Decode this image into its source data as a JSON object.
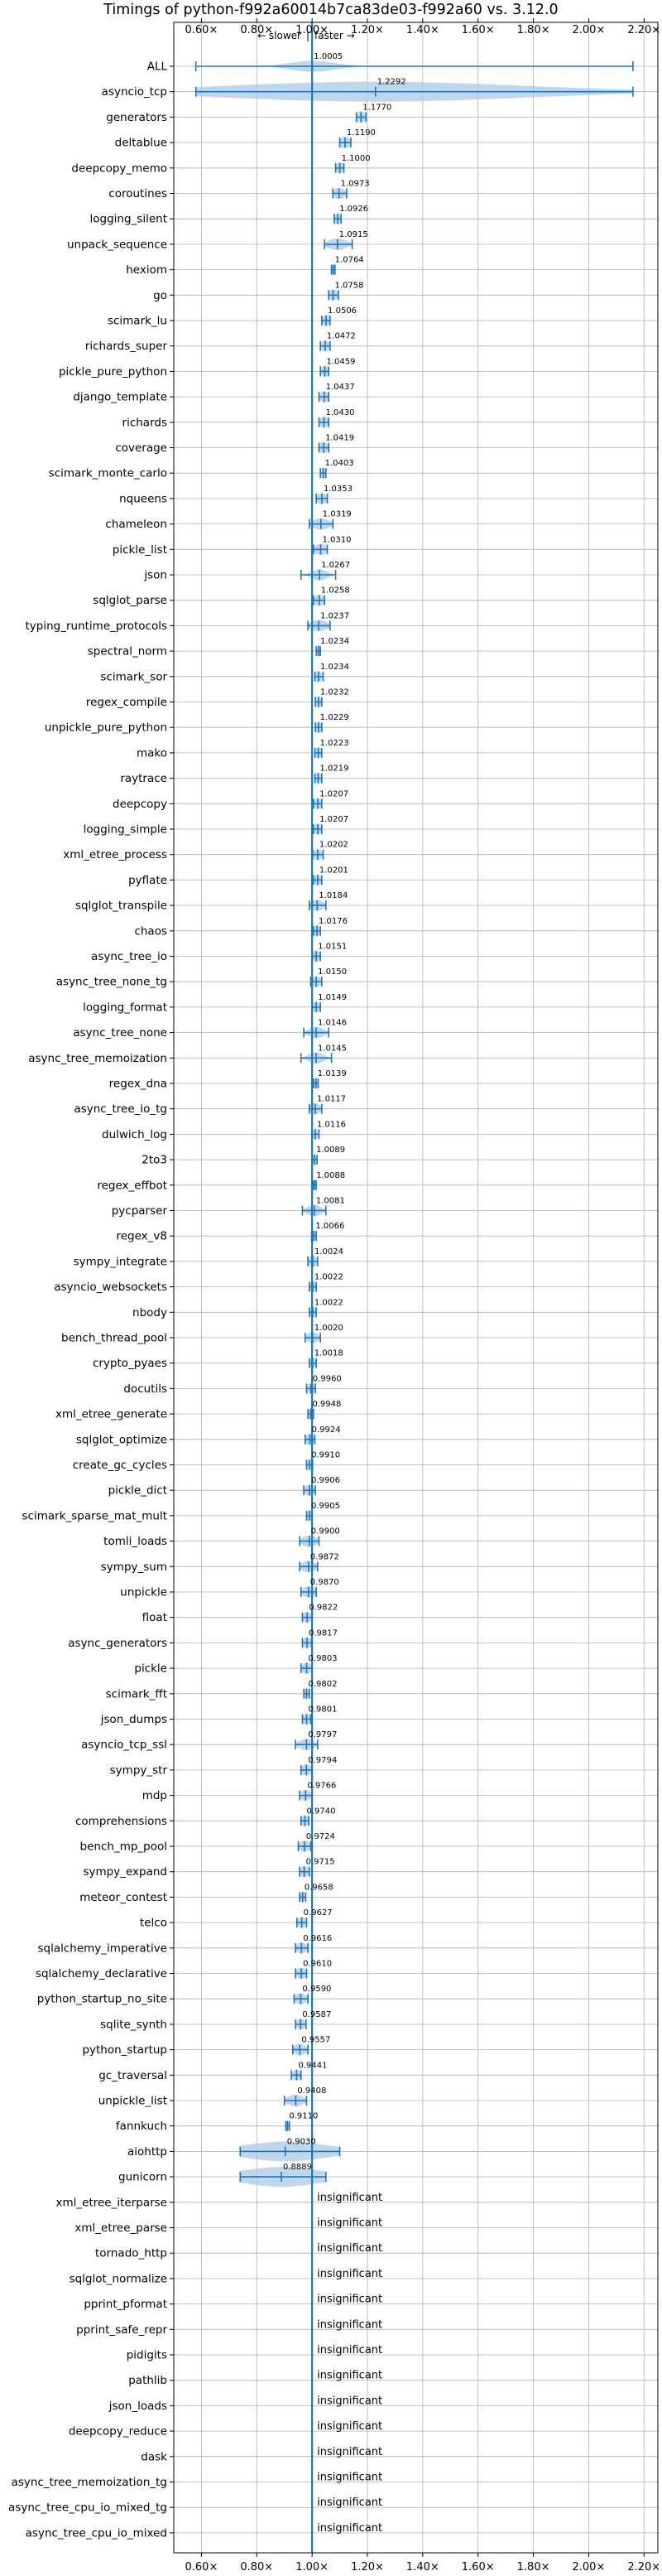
{
  "chart_data": {
    "type": "violin",
    "title": "Timings of python-f992a60014b7ca83de03-f992a60 vs. 3.12.0",
    "annotation_left": "← slower",
    "annotation_sep": "|",
    "annotation_right": "faster →",
    "xlim": [
      0.5,
      2.25
    ],
    "xticks": [
      0.6,
      0.8,
      1.0,
      1.2,
      1.4,
      1.6,
      1.8,
      2.0,
      2.2
    ],
    "xtick_labels": [
      "0.60×",
      "0.80×",
      "1.00×",
      "1.20×",
      "1.40×",
      "1.60×",
      "1.80×",
      "2.00×",
      "2.20×"
    ],
    "grid": true,
    "reference_line": 1.0,
    "colors": {
      "violin": "#a9c8e6",
      "whisker": "#1f77b4",
      "reference": "#1f77b4",
      "median": "#d62728",
      "grid": "#b0b0b0"
    },
    "insignificant_label": "insignificant",
    "benchmarks": [
      {
        "name": "ALL",
        "ratio": 1.0005,
        "label": "1.0005",
        "lo": 0.58,
        "hi": 2.16,
        "vwidth": 0.09,
        "significant": true
      },
      {
        "name": "asyncio_tcp",
        "ratio": 1.2292,
        "label": "1.2292",
        "lo": 0.58,
        "hi": 2.16,
        "vwidth": 0.62,
        "significant": true
      },
      {
        "name": "generators",
        "ratio": 1.177,
        "label": "1.1770",
        "lo": 1.16,
        "hi": 1.195,
        "vwidth": 0.018,
        "significant": true
      },
      {
        "name": "deltablue",
        "ratio": 1.119,
        "label": "1.1190",
        "lo": 1.1,
        "hi": 1.14,
        "vwidth": 0.02,
        "significant": true
      },
      {
        "name": "deepcopy_memo",
        "ratio": 1.1,
        "label": "1.1000",
        "lo": 1.085,
        "hi": 1.115,
        "vwidth": 0.015,
        "significant": true
      },
      {
        "name": "coroutines",
        "ratio": 1.0973,
        "label": "1.0973",
        "lo": 1.075,
        "hi": 1.125,
        "vwidth": 0.025,
        "significant": true
      },
      {
        "name": "logging_silent",
        "ratio": 1.0926,
        "label": "1.0926",
        "lo": 1.08,
        "hi": 1.105,
        "vwidth": 0.013,
        "significant": true
      },
      {
        "name": "unpack_sequence",
        "ratio": 1.0915,
        "label": "1.0915",
        "lo": 1.045,
        "hi": 1.145,
        "vwidth": 0.04,
        "significant": true
      },
      {
        "name": "hexiom",
        "ratio": 1.0764,
        "label": "1.0764",
        "lo": 1.07,
        "hi": 1.083,
        "vwidth": 0.008,
        "significant": true
      },
      {
        "name": "go",
        "ratio": 1.0758,
        "label": "1.0758",
        "lo": 1.06,
        "hi": 1.095,
        "vwidth": 0.018,
        "significant": true
      },
      {
        "name": "scimark_lu",
        "ratio": 1.0506,
        "label": "1.0506",
        "lo": 1.035,
        "hi": 1.065,
        "vwidth": 0.015,
        "significant": true
      },
      {
        "name": "richards_super",
        "ratio": 1.0472,
        "label": "1.0472",
        "lo": 1.03,
        "hi": 1.065,
        "vwidth": 0.017,
        "significant": true
      },
      {
        "name": "pickle_pure_python",
        "ratio": 1.0459,
        "label": "1.0459",
        "lo": 1.03,
        "hi": 1.06,
        "vwidth": 0.015,
        "significant": true
      },
      {
        "name": "django_template",
        "ratio": 1.0437,
        "label": "1.0437",
        "lo": 1.025,
        "hi": 1.06,
        "vwidth": 0.017,
        "significant": true
      },
      {
        "name": "richards",
        "ratio": 1.043,
        "label": "1.0430",
        "lo": 1.025,
        "hi": 1.06,
        "vwidth": 0.017,
        "significant": true
      },
      {
        "name": "coverage",
        "ratio": 1.0419,
        "label": "1.0419",
        "lo": 1.025,
        "hi": 1.06,
        "vwidth": 0.017,
        "significant": true
      },
      {
        "name": "scimark_monte_carlo",
        "ratio": 1.0403,
        "label": "1.0403",
        "lo": 1.03,
        "hi": 1.05,
        "vwidth": 0.01,
        "significant": true
      },
      {
        "name": "nqueens",
        "ratio": 1.0353,
        "label": "1.0353",
        "lo": 1.015,
        "hi": 1.055,
        "vwidth": 0.02,
        "significant": true
      },
      {
        "name": "chameleon",
        "ratio": 1.0319,
        "label": "1.0319",
        "lo": 0.99,
        "hi": 1.075,
        "vwidth": 0.035,
        "significant": true
      },
      {
        "name": "pickle_list",
        "ratio": 1.031,
        "label": "1.0310",
        "lo": 1.005,
        "hi": 1.055,
        "vwidth": 0.025,
        "significant": true
      },
      {
        "name": "json",
        "ratio": 1.0267,
        "label": "1.0267",
        "lo": 0.96,
        "hi": 1.085,
        "vwidth": 0.03,
        "significant": true
      },
      {
        "name": "sqlglot_parse",
        "ratio": 1.0258,
        "label": "1.0258",
        "lo": 1.005,
        "hi": 1.045,
        "vwidth": 0.022,
        "significant": true
      },
      {
        "name": "typing_runtime_protocols",
        "ratio": 1.0237,
        "label": "1.0237",
        "lo": 0.985,
        "hi": 1.065,
        "vwidth": 0.035,
        "significant": true
      },
      {
        "name": "spectral_norm",
        "ratio": 1.0234,
        "label": "1.0234",
        "lo": 1.015,
        "hi": 1.03,
        "vwidth": 0.008,
        "significant": true
      },
      {
        "name": "scimark_sor",
        "ratio": 1.0234,
        "label": "1.0234",
        "lo": 1.01,
        "hi": 1.04,
        "vwidth": 0.014,
        "significant": true
      },
      {
        "name": "regex_compile",
        "ratio": 1.0232,
        "label": "1.0232",
        "lo": 1.012,
        "hi": 1.035,
        "vwidth": 0.012,
        "significant": true
      },
      {
        "name": "unpickle_pure_python",
        "ratio": 1.0229,
        "label": "1.0229",
        "lo": 1.012,
        "hi": 1.035,
        "vwidth": 0.012,
        "significant": true
      },
      {
        "name": "mako",
        "ratio": 1.0223,
        "label": "1.0223",
        "lo": 1.01,
        "hi": 1.035,
        "vwidth": 0.013,
        "significant": true
      },
      {
        "name": "raytrace",
        "ratio": 1.0219,
        "label": "1.0219",
        "lo": 1.01,
        "hi": 1.035,
        "vwidth": 0.013,
        "significant": true
      },
      {
        "name": "deepcopy",
        "ratio": 1.0207,
        "label": "1.0207",
        "lo": 1.005,
        "hi": 1.035,
        "vwidth": 0.015,
        "significant": true
      },
      {
        "name": "logging_simple",
        "ratio": 1.0207,
        "label": "1.0207",
        "lo": 1.005,
        "hi": 1.035,
        "vwidth": 0.015,
        "significant": true
      },
      {
        "name": "xml_etree_process",
        "ratio": 1.0202,
        "label": "1.0202",
        "lo": 1.002,
        "hi": 1.04,
        "vwidth": 0.018,
        "significant": true
      },
      {
        "name": "pyflate",
        "ratio": 1.0201,
        "label": "1.0201",
        "lo": 1.005,
        "hi": 1.035,
        "vwidth": 0.015,
        "significant": true
      },
      {
        "name": "sqlglot_transpile",
        "ratio": 1.0184,
        "label": "1.0184",
        "lo": 0.99,
        "hi": 1.05,
        "vwidth": 0.025,
        "significant": true
      },
      {
        "name": "chaos",
        "ratio": 1.0176,
        "label": "1.0176",
        "lo": 1.005,
        "hi": 1.03,
        "vwidth": 0.013,
        "significant": true
      },
      {
        "name": "async_tree_io",
        "ratio": 1.0151,
        "label": "1.0151",
        "lo": 1.0,
        "hi": 1.03,
        "vwidth": 0.015,
        "significant": true
      },
      {
        "name": "async_tree_none_tg",
        "ratio": 1.015,
        "label": "1.0150",
        "lo": 0.995,
        "hi": 1.035,
        "vwidth": 0.018,
        "significant": true
      },
      {
        "name": "logging_format",
        "ratio": 1.0149,
        "label": "1.0149",
        "lo": 1.0,
        "hi": 1.03,
        "vwidth": 0.015,
        "significant": true
      },
      {
        "name": "async_tree_none",
        "ratio": 1.0146,
        "label": "1.0146",
        "lo": 0.97,
        "hi": 1.06,
        "vwidth": 0.03,
        "significant": true
      },
      {
        "name": "async_tree_memoization",
        "ratio": 1.0145,
        "label": "1.0145",
        "lo": 0.96,
        "hi": 1.07,
        "vwidth": 0.03,
        "significant": true
      },
      {
        "name": "regex_dna",
        "ratio": 1.0139,
        "label": "1.0139",
        "lo": 1.005,
        "hi": 1.022,
        "vwidth": 0.008,
        "significant": true
      },
      {
        "name": "async_tree_io_tg",
        "ratio": 1.0117,
        "label": "1.0117",
        "lo": 0.99,
        "hi": 1.035,
        "vwidth": 0.02,
        "significant": true
      },
      {
        "name": "dulwich_log",
        "ratio": 1.0116,
        "label": "1.0116",
        "lo": 1.0,
        "hi": 1.025,
        "vwidth": 0.012,
        "significant": true
      },
      {
        "name": "2to3",
        "ratio": 1.0089,
        "label": "1.0089",
        "lo": 1.0,
        "hi": 1.018,
        "vwidth": 0.009,
        "significant": true
      },
      {
        "name": "regex_effbot",
        "ratio": 1.0088,
        "label": "1.0088",
        "lo": 1.003,
        "hi": 1.015,
        "vwidth": 0.006,
        "significant": true
      },
      {
        "name": "pycparser",
        "ratio": 1.0081,
        "label": "1.0081",
        "lo": 0.965,
        "hi": 1.05,
        "vwidth": 0.03,
        "significant": true
      },
      {
        "name": "regex_v8",
        "ratio": 1.0066,
        "label": "1.0066",
        "lo": 0.998,
        "hi": 1.015,
        "vwidth": 0.008,
        "significant": true
      },
      {
        "name": "sympy_integrate",
        "ratio": 1.0024,
        "label": "1.0024",
        "lo": 0.985,
        "hi": 1.02,
        "vwidth": 0.017,
        "significant": true
      },
      {
        "name": "asyncio_websockets",
        "ratio": 1.0022,
        "label": "1.0022",
        "lo": 0.99,
        "hi": 1.015,
        "vwidth": 0.012,
        "significant": true
      },
      {
        "name": "nbody",
        "ratio": 1.0022,
        "label": "1.0022",
        "lo": 0.99,
        "hi": 1.015,
        "vwidth": 0.012,
        "significant": true
      },
      {
        "name": "bench_thread_pool",
        "ratio": 1.002,
        "label": "1.0020",
        "lo": 0.975,
        "hi": 1.03,
        "vwidth": 0.022,
        "significant": true
      },
      {
        "name": "crypto_pyaes",
        "ratio": 1.0018,
        "label": "1.0018",
        "lo": 0.99,
        "hi": 1.015,
        "vwidth": 0.012,
        "significant": true
      },
      {
        "name": "docutils",
        "ratio": 0.996,
        "label": "0.9960",
        "lo": 0.98,
        "hi": 1.012,
        "vwidth": 0.015,
        "significant": true
      },
      {
        "name": "xml_etree_generate",
        "ratio": 0.9948,
        "label": "0.9948",
        "lo": 0.985,
        "hi": 1.005,
        "vwidth": 0.01,
        "significant": true
      },
      {
        "name": "sqlglot_optimize",
        "ratio": 0.9924,
        "label": "0.9924",
        "lo": 0.975,
        "hi": 1.01,
        "vwidth": 0.017,
        "significant": true
      },
      {
        "name": "create_gc_cycles",
        "ratio": 0.991,
        "label": "0.9910",
        "lo": 0.98,
        "hi": 1.002,
        "vwidth": 0.01,
        "significant": true
      },
      {
        "name": "pickle_dict",
        "ratio": 0.9906,
        "label": "0.9906",
        "lo": 0.97,
        "hi": 1.012,
        "vwidth": 0.02,
        "significant": true
      },
      {
        "name": "scimark_sparse_mat_mult",
        "ratio": 0.9905,
        "label": "0.9905",
        "lo": 0.98,
        "hi": 1.0,
        "vwidth": 0.01,
        "significant": true
      },
      {
        "name": "tomli_loads",
        "ratio": 0.99,
        "label": "0.9900",
        "lo": 0.955,
        "hi": 1.025,
        "vwidth": 0.03,
        "significant": true
      },
      {
        "name": "sympy_sum",
        "ratio": 0.9872,
        "label": "0.9872",
        "lo": 0.955,
        "hi": 1.02,
        "vwidth": 0.03,
        "significant": true
      },
      {
        "name": "unpickle",
        "ratio": 0.987,
        "label": "0.9870",
        "lo": 0.96,
        "hi": 1.015,
        "vwidth": 0.025,
        "significant": true
      },
      {
        "name": "float",
        "ratio": 0.9822,
        "label": "0.9822",
        "lo": 0.965,
        "hi": 1.0,
        "vwidth": 0.017,
        "significant": true
      },
      {
        "name": "async_generators",
        "ratio": 0.9817,
        "label": "0.9817",
        "lo": 0.965,
        "hi": 0.998,
        "vwidth": 0.016,
        "significant": true
      },
      {
        "name": "pickle",
        "ratio": 0.9803,
        "label": "0.9803",
        "lo": 0.96,
        "hi": 1.0,
        "vwidth": 0.02,
        "significant": true
      },
      {
        "name": "scimark_fft",
        "ratio": 0.9802,
        "label": "0.9802",
        "lo": 0.97,
        "hi": 0.99,
        "vwidth": 0.01,
        "significant": true
      },
      {
        "name": "json_dumps",
        "ratio": 0.9801,
        "label": "0.9801",
        "lo": 0.965,
        "hi": 0.995,
        "vwidth": 0.015,
        "significant": true
      },
      {
        "name": "asyncio_tcp_ssl",
        "ratio": 0.9797,
        "label": "0.9797",
        "lo": 0.94,
        "hi": 1.02,
        "vwidth": 0.03,
        "significant": true
      },
      {
        "name": "sympy_str",
        "ratio": 0.9794,
        "label": "0.9794",
        "lo": 0.96,
        "hi": 1.0,
        "vwidth": 0.02,
        "significant": true
      },
      {
        "name": "mdp",
        "ratio": 0.9766,
        "label": "0.9766",
        "lo": 0.955,
        "hi": 1.0,
        "vwidth": 0.02,
        "significant": true
      },
      {
        "name": "comprehensions",
        "ratio": 0.974,
        "label": "0.9740",
        "lo": 0.96,
        "hi": 0.988,
        "vwidth": 0.014,
        "significant": true
      },
      {
        "name": "bench_mp_pool",
        "ratio": 0.9724,
        "label": "0.9724",
        "lo": 0.95,
        "hi": 0.995,
        "vwidth": 0.02,
        "significant": true
      },
      {
        "name": "sympy_expand",
        "ratio": 0.9715,
        "label": "0.9715",
        "lo": 0.955,
        "hi": 0.99,
        "vwidth": 0.017,
        "significant": true
      },
      {
        "name": "meteor_contest",
        "ratio": 0.9658,
        "label": "0.9658",
        "lo": 0.955,
        "hi": 0.977,
        "vwidth": 0.01,
        "significant": true
      },
      {
        "name": "telco",
        "ratio": 0.9627,
        "label": "0.9627",
        "lo": 0.945,
        "hi": 0.98,
        "vwidth": 0.017,
        "significant": true
      },
      {
        "name": "sqlalchemy_imperative",
        "ratio": 0.9616,
        "label": "0.9616",
        "lo": 0.94,
        "hi": 0.985,
        "vwidth": 0.02,
        "significant": true
      },
      {
        "name": "sqlalchemy_declarative",
        "ratio": 0.961,
        "label": "0.9610",
        "lo": 0.94,
        "hi": 0.98,
        "vwidth": 0.02,
        "significant": true
      },
      {
        "name": "python_startup_no_site",
        "ratio": 0.959,
        "label": "0.9590",
        "lo": 0.935,
        "hi": 0.985,
        "vwidth": 0.022,
        "significant": true
      },
      {
        "name": "sqlite_synth",
        "ratio": 0.9587,
        "label": "0.9587",
        "lo": 0.94,
        "hi": 0.978,
        "vwidth": 0.018,
        "significant": true
      },
      {
        "name": "python_startup",
        "ratio": 0.9557,
        "label": "0.9557",
        "lo": 0.93,
        "hi": 0.985,
        "vwidth": 0.025,
        "significant": true
      },
      {
        "name": "gc_traversal",
        "ratio": 0.9441,
        "label": "0.9441",
        "lo": 0.925,
        "hi": 0.96,
        "vwidth": 0.016,
        "significant": true
      },
      {
        "name": "unpickle_list",
        "ratio": 0.9408,
        "label": "0.9408",
        "lo": 0.9,
        "hi": 0.98,
        "vwidth": 0.035,
        "significant": true
      },
      {
        "name": "fannkuch",
        "ratio": 0.911,
        "label": "0.9110",
        "lo": 0.905,
        "hi": 0.918,
        "vwidth": 0.006,
        "significant": true
      },
      {
        "name": "aiohttp",
        "ratio": 0.903,
        "label": "0.9030",
        "lo": 0.74,
        "hi": 1.1,
        "vwidth": 0.18,
        "significant": true
      },
      {
        "name": "gunicorn",
        "ratio": 0.8889,
        "label": "0.8889",
        "lo": 0.74,
        "hi": 1.05,
        "vwidth": 0.17,
        "significant": true
      },
      {
        "name": "xml_etree_iterparse",
        "significant": false
      },
      {
        "name": "xml_etree_parse",
        "significant": false
      },
      {
        "name": "tornado_http",
        "significant": false
      },
      {
        "name": "sqlglot_normalize",
        "significant": false
      },
      {
        "name": "pprint_pformat",
        "significant": false
      },
      {
        "name": "pprint_safe_repr",
        "significant": false
      },
      {
        "name": "pidigits",
        "significant": false
      },
      {
        "name": "pathlib",
        "significant": false
      },
      {
        "name": "json_loads",
        "significant": false
      },
      {
        "name": "deepcopy_reduce",
        "significant": false
      },
      {
        "name": "dask",
        "significant": false
      },
      {
        "name": "async_tree_memoization_tg",
        "significant": false
      },
      {
        "name": "async_tree_cpu_io_mixed_tg",
        "significant": false
      },
      {
        "name": "async_tree_cpu_io_mixed",
        "significant": false
      }
    ]
  }
}
